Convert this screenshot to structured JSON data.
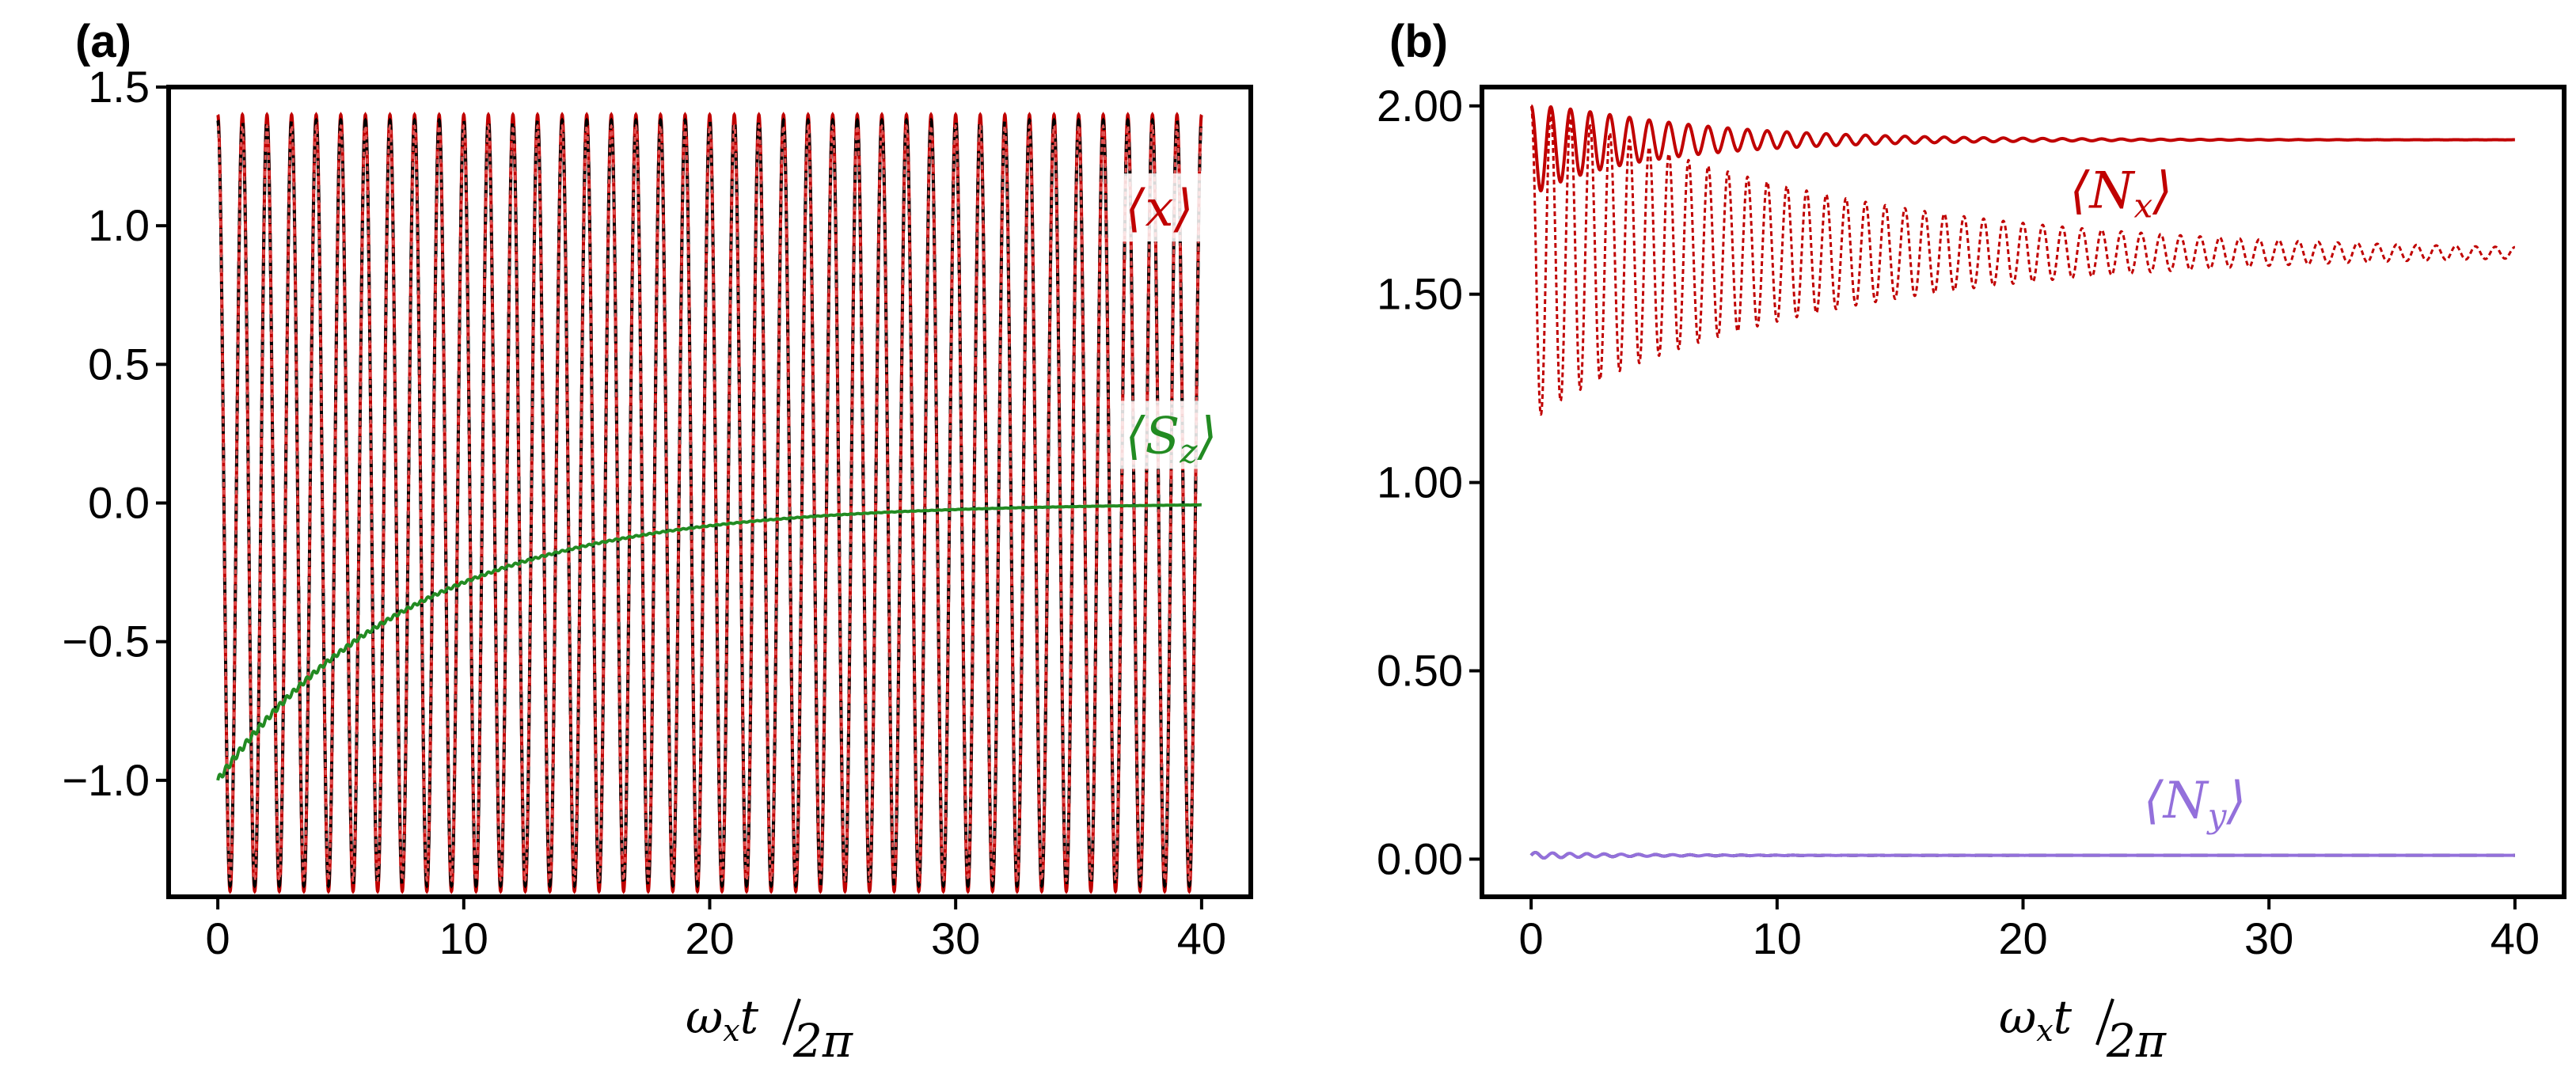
{
  "chart_data": [
    {
      "panel": "(a)",
      "type": "line",
      "xlabel": "ω_x t / 2π",
      "xlabel_parts": {
        "omega": "ω",
        "sub": "x",
        "t": "t",
        "den": "2π"
      },
      "xlim": [
        -2,
        42
      ],
      "ylim": [
        -1.42,
        1.5
      ],
      "xticks": [
        0,
        10,
        20,
        30,
        40
      ],
      "xtick_labels": [
        "0",
        "10",
        "20",
        "30",
        "40"
      ],
      "yticks": [
        -1.0,
        -0.5,
        0.0,
        0.5,
        1.0,
        1.5
      ],
      "ytick_labels": [
        "−1.0",
        "−0.5",
        "0.0",
        "0.5",
        "1.0",
        "1.5"
      ],
      "series": [
        {
          "name": "⟨x⟩ (solid)",
          "color": "#c00000",
          "style": "solid",
          "kind": "cos",
          "amplitude": 1.4,
          "offset": -0.0,
          "period": 1.0,
          "x_end": 40
        },
        {
          "name": "⟨x⟩ (dashed)",
          "color": "#000000",
          "style": "dashed",
          "kind": "cos",
          "amplitude": 1.38,
          "offset": -0.0,
          "period": 1.0,
          "x_end": 40
        },
        {
          "name": "⟨x⟩ (dotted)",
          "color": "#e05050",
          "style": "dotted",
          "kind": "cos",
          "amplitude": 1.36,
          "offset": -0.0,
          "period": 1.0,
          "x_end": 40
        },
        {
          "name": "⟨S_z⟩",
          "color": "#228b22",
          "style": "solid",
          "kind": "decay",
          "start": -1.0,
          "end": 0.0,
          "tau": 8.0,
          "x_end": 40
        }
      ],
      "annotations": [
        {
          "id": "x",
          "open": "⟨",
          "var": "x",
          "sub": "",
          "close": "⟩",
          "color": "#c00000",
          "at_x": 36.9,
          "at_y": 1.0
        },
        {
          "id": "sz",
          "open": "⟨",
          "var": "S",
          "sub": "z",
          "close": "⟩",
          "color": "#228b22",
          "at_x": 36.9,
          "at_y": 0.18
        }
      ]
    },
    {
      "panel": "(b)",
      "type": "line",
      "xlabel": "ω_x t / 2π",
      "xlabel_parts": {
        "omega": "ω",
        "sub": "x",
        "t": "t",
        "den": "2π"
      },
      "xlim": [
        -2,
        42
      ],
      "ylim": [
        -0.1,
        2.05
      ],
      "xticks": [
        0,
        10,
        20,
        30,
        40
      ],
      "xtick_labels": [
        "0",
        "10",
        "20",
        "30",
        "40"
      ],
      "yticks": [
        0.0,
        0.5,
        1.0,
        1.5,
        2.0
      ],
      "ytick_labels": [
        "0.00",
        "0.50",
        "1.00",
        "1.50",
        "2.00"
      ],
      "series": [
        {
          "name": "⟨N_x⟩ (solid)",
          "color": "#c00000",
          "style": "solid",
          "kind": "damped",
          "start": 2.0,
          "final": 1.91,
          "amp0": 0.12,
          "tau": 6.0,
          "period": 0.8,
          "x_end": 40
        },
        {
          "name": "⟨N_x⟩ (dotted)",
          "color": "#c00000",
          "style": "dotted",
          "kind": "damped",
          "start": 2.0,
          "final": 1.61,
          "amp0": 0.42,
          "tau": 12.0,
          "period": 0.8,
          "x_end": 40
        },
        {
          "name": "⟨N_y⟩ (dashed)",
          "color": "#000000",
          "style": "dashed",
          "kind": "flat",
          "value": 0.01,
          "x_end": 40
        },
        {
          "name": "⟨N_y⟩ (solid)",
          "color": "#9370db",
          "style": "solid",
          "kind": "flat",
          "value": 0.01,
          "x_end": 40
        }
      ],
      "annotations": [
        {
          "id": "nx",
          "open": "⟨",
          "var": "N",
          "sub": "x",
          "close": "⟩",
          "color": "#c00000",
          "at_x": 21.9,
          "at_y": 1.73
        },
        {
          "id": "ny",
          "open": "⟨",
          "var": "N",
          "sub": "y",
          "close": "⟩",
          "color": "#9370db",
          "at_x": 24.9,
          "at_y": 0.11
        }
      ]
    }
  ]
}
